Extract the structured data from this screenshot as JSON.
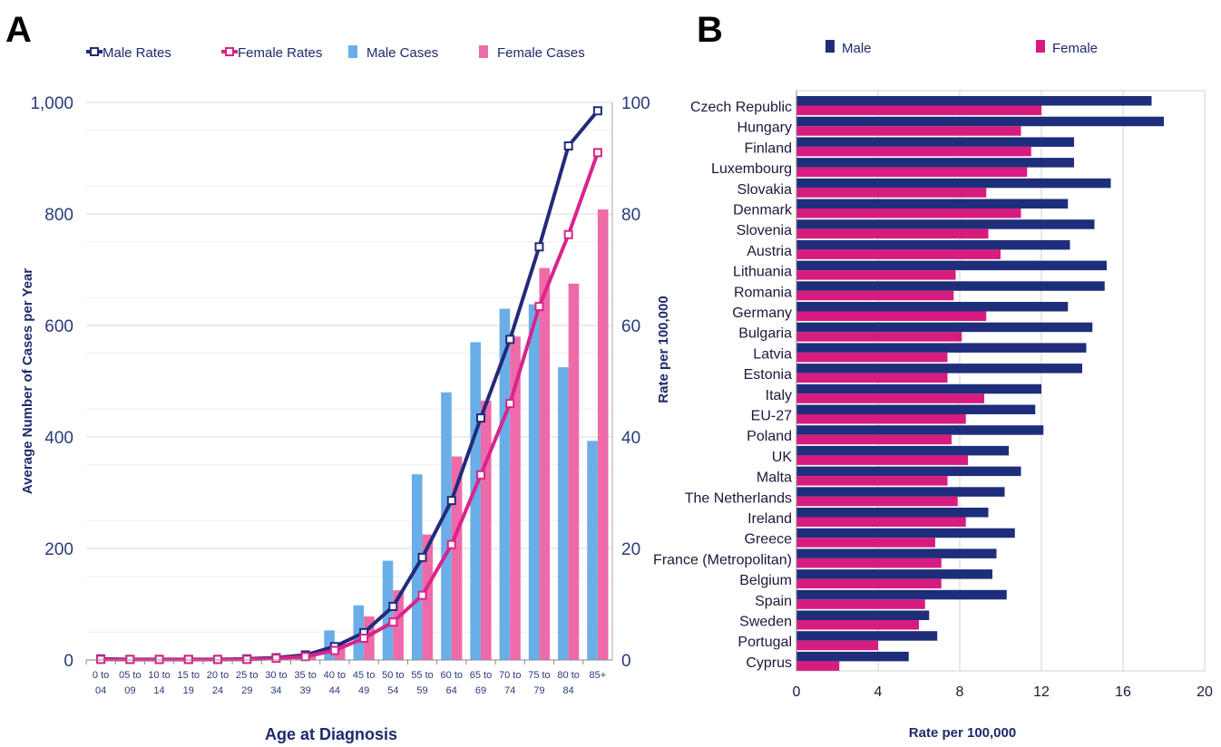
{
  "chart_data": [
    {
      "panel": "A",
      "type": "bar",
      "categories": [
        "0 to 04",
        "05 to 09",
        "10 to 14",
        "15 to 19",
        "20 to 24",
        "25 to 29",
        "30 to 34",
        "35 to 39",
        "40 to 44",
        "45 to 49",
        "50 to 54",
        "55 to 59",
        "60 to 64",
        "65 to 69",
        "70 to 74",
        "75 to 79",
        "80 to 84",
        "85+"
      ],
      "series": [
        {
          "name": "Male Cases",
          "kind": "bar",
          "axis": "left",
          "color": "#6aaee8",
          "values": [
            1,
            1,
            1,
            1,
            1,
            2,
            3,
            8,
            53,
            98,
            178,
            333,
            480,
            570,
            630,
            638,
            525,
            393
          ]
        },
        {
          "name": "Female Cases",
          "kind": "bar",
          "axis": "left",
          "color": "#ee6aa8",
          "values": [
            1,
            1,
            1,
            1,
            1,
            1,
            3,
            7,
            30,
            78,
            125,
            225,
            365,
            465,
            580,
            703,
            675,
            808
          ]
        },
        {
          "name": "Male Rates",
          "kind": "line",
          "axis": "right",
          "color": "#232a7a",
          "values": [
            0.2,
            0.1,
            0.1,
            0.1,
            0.1,
            0.2,
            0.4,
            0.9,
            2.4,
            4.9,
            9.6,
            18.4,
            28.6,
            43.4,
            57.5,
            74.1,
            92.2,
            98.5
          ]
        },
        {
          "name": "Female Rates",
          "kind": "line",
          "axis": "right",
          "color": "#d9248a",
          "values": [
            0.1,
            0.1,
            0.1,
            0.1,
            0.1,
            0.1,
            0.3,
            0.6,
            1.7,
            3.9,
            6.8,
            11.6,
            20.7,
            33.2,
            46.0,
            63.4,
            76.3,
            91.0
          ]
        }
      ],
      "xlabel": "Age at Diagnosis",
      "ylabel": "Average Number of Cases per Year",
      "ylabel_right": "Rate per 100,000",
      "ylim": [
        0,
        1000
      ],
      "ylim_right": [
        0,
        100
      ],
      "yticks": [
        "0",
        "200",
        "400",
        "600",
        "800",
        "1,000"
      ],
      "yticks_right": [
        "0",
        "20",
        "40",
        "60",
        "80",
        "100"
      ],
      "grid": true,
      "legend_placement": "top"
    },
    {
      "panel": "B",
      "type": "bar",
      "orientation": "horizontal",
      "categories": [
        "Czech Republic",
        "Hungary",
        "Finland",
        "Luxembourg",
        "Slovakia",
        "Denmark",
        "Slovenia",
        "Austria",
        "Lithuania",
        "Romania",
        "Germany",
        "Bulgaria",
        "Latvia",
        "Estonia",
        "Italy",
        "EU-27",
        "Poland",
        "UK",
        "Malta",
        "The Netherlands",
        "Ireland",
        "Greece",
        "France (Metropolitan)",
        "Belgium",
        "Spain",
        "Sweden",
        "Portugal",
        "Cyprus"
      ],
      "series": [
        {
          "name": "Male",
          "color": "#1f2e7a",
          "values": [
            17.4,
            18.0,
            13.6,
            13.6,
            15.4,
            13.3,
            14.6,
            13.4,
            15.2,
            15.1,
            13.3,
            14.5,
            14.2,
            14.0,
            12.0,
            11.7,
            12.1,
            10.4,
            11.0,
            10.2,
            9.4,
            10.7,
            9.8,
            9.6,
            10.3,
            6.5,
            6.9,
            5.5
          ]
        },
        {
          "name": "Female",
          "color": "#d81b7f",
          "values": [
            12.0,
            11.0,
            11.5,
            11.3,
            9.3,
            11.0,
            9.4,
            10.0,
            7.8,
            7.7,
            9.3,
            8.1,
            7.4,
            7.4,
            9.2,
            8.3,
            7.6,
            8.4,
            7.4,
            7.9,
            8.3,
            6.8,
            7.1,
            7.1,
            6.3,
            6.0,
            4.0,
            2.1
          ]
        }
      ],
      "xlabel": "Rate per 100,000",
      "xlim": [
        0,
        20
      ],
      "xticks": [
        "0",
        "4",
        "8",
        "12",
        "16",
        "20"
      ],
      "grid": true,
      "legend_placement": "top"
    }
  ],
  "panel_labels": {
    "a": "A",
    "b": "B"
  },
  "legend_a": [
    "Male Rates",
    "Female Rates",
    "Male Cases",
    "Female Cases"
  ],
  "legend_b": [
    "Male",
    "Female"
  ]
}
